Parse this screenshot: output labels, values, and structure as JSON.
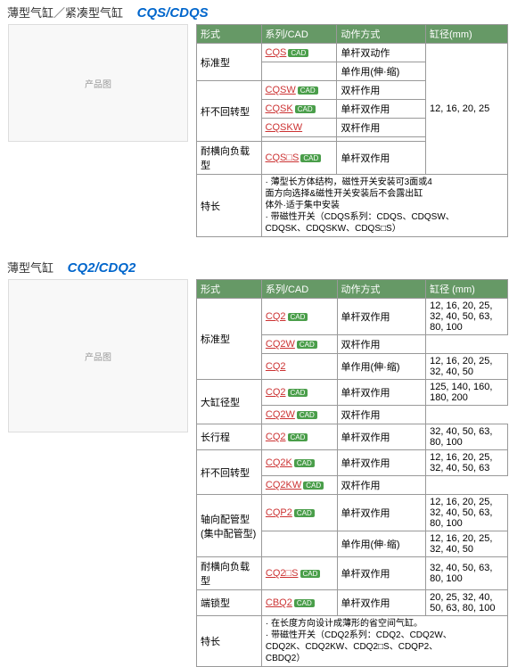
{
  "section1": {
    "title_cn": "薄型气缸／紧凑型气缸",
    "title_model": "CQS/CDQS",
    "headers": [
      "形式",
      "系列/CAD",
      "动作方式",
      "缸径(mm)"
    ],
    "rows": [
      {
        "form": "标准型",
        "series": "CQS",
        "cad": true,
        "action": "单杆双动作",
        "bore": "12, 16, 20, 25",
        "form_rs": 2,
        "bore_rs": 7
      },
      {
        "series": "",
        "cad": false,
        "action": "单作用(伸·缩)"
      },
      {
        "form": "杆不回转型",
        "series": "CQSW",
        "cad": true,
        "action": "双杆作用",
        "form_rs": 4
      },
      {
        "series": "CQSK",
        "cad": true,
        "action": "单杆双作用"
      },
      {
        "series": "CQSKW",
        "cad": false,
        "action": "双杆作用"
      },
      {
        "series": "",
        "cad": false,
        "action": ""
      },
      {
        "form": "耐横向负载型",
        "series": "CQS□S",
        "cad": true,
        "action": "单杆双作用"
      }
    ],
    "feature_label": "特长",
    "feature_text": "· 薄型长方体结构，磁性开关安装可3面或4\n  面方向选择&磁性开关安装后不会露出缸\n  体外·适于集中安装\n· 带磁性开关（CDQS系列：CDQS、CDQSW、\n  CDQSK、CDQSKW、CDQS□S）"
  },
  "section2": {
    "title_cn": "薄型气缸",
    "title_model": "CQ2/CDQ2",
    "headers": [
      "形式",
      "系列/CAD",
      "动作方式",
      "缸径 (mm)"
    ],
    "rows": [
      {
        "form": "标准型",
        "series": "CQ2",
        "cad": true,
        "action": "单杆双作用",
        "bore": "12, 16, 20, 25,\n32, 40, 50, 63,\n80, 100",
        "form_rs": 3
      },
      {
        "series": "CQ2W",
        "cad": true,
        "action": "双杆作用"
      },
      {
        "series": "CQ2",
        "cad": false,
        "action": "单作用(伸·缩)",
        "bore": "12, 16, 20, 25,\n32, 40, 50"
      },
      {
        "form": "大缸径型",
        "series": "CQ2",
        "cad": true,
        "action": "单杆双作用",
        "bore": "125, 140, 160,\n180, 200",
        "form_rs": 2
      },
      {
        "series": "CQ2W",
        "cad": true,
        "action": "双杆作用"
      },
      {
        "form": "长行程",
        "series": "CQ2",
        "cad": true,
        "action": "单杆双作用",
        "bore": "32, 40, 50, 63,\n80, 100"
      },
      {
        "form": "杆不回转型",
        "series": "CQ2K",
        "cad": true,
        "action": "单杆双作用",
        "bore": "12, 16, 20, 25,\n32, 40, 50, 63",
        "form_rs": 2
      },
      {
        "series": "CQ2KW",
        "cad": true,
        "action": "双杆作用"
      },
      {
        "form": "轴向配管型\n(集中配管型)",
        "series": "CQP2",
        "cad": true,
        "action": "单杆双作用",
        "bore": "12, 16, 20, 25,\n32, 40, 50, 63,\n80, 100",
        "form_rs": 2
      },
      {
        "series": "",
        "cad": false,
        "action": "单作用(伸·缩)",
        "bore": "12, 16, 20, 25,\n32, 40, 50"
      },
      {
        "form": "耐横向负载型",
        "series": "CQ2□S",
        "cad": true,
        "action": "单杆双作用",
        "bore": "32, 40, 50, 63,\n80, 100"
      },
      {
        "form": "端锁型",
        "series": "CBQ2",
        "cad": true,
        "action": "单杆双作用",
        "bore": "20, 25, 32, 40,\n50, 63, 80, 100"
      }
    ],
    "feature_label": "特长",
    "feature_text": "· 在长度方向设计成薄形的省空间气缸。\n· 带磁性开关（CDQ2系列：CDQ2、CDQ2W、\n  CDQ2K、CDQ2KW、CDQ2□S、CDQP2、\n  CBDQ2）"
  },
  "cad_label": "CAD",
  "img_height1": 130,
  "img_height2": 170
}
